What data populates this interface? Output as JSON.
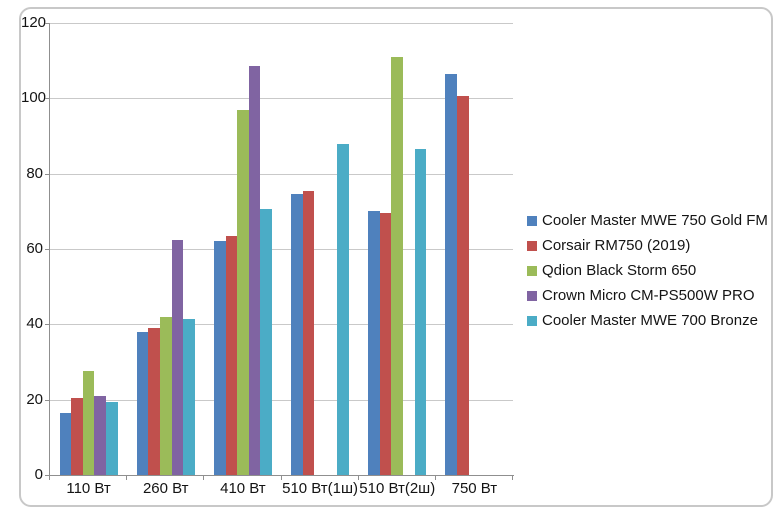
{
  "chart_data": {
    "type": "bar",
    "title": "",
    "xlabel": "",
    "ylabel": "",
    "categories": [
      "110 Вт",
      "260 Вт",
      "410 Вт",
      "510 Вт(1ш)",
      "510 Вт(2ш)",
      "750 Вт"
    ],
    "series": [
      {
        "name": "Cooler Master MWE 750 Gold FM",
        "color": "#4F81BD",
        "values": [
          16.5,
          38,
          62,
          74.5,
          70,
          106.5
        ]
      },
      {
        "name": "Corsair RM750 (2019)",
        "color": "#C0504D",
        "values": [
          20.5,
          39,
          63.5,
          75.5,
          69.5,
          100.5
        ]
      },
      {
        "name": "Qdion Black Storm 650",
        "color": "#9BBB59",
        "values": [
          27.5,
          42,
          97,
          null,
          111,
          null
        ]
      },
      {
        "name": "Crown Micro CM-PS500W PRO",
        "color": "#8064A2",
        "values": [
          21,
          62.5,
          108.5,
          null,
          null,
          null
        ]
      },
      {
        "name": "Cooler Master MWE 700 Bronze",
        "color": "#4BACC6",
        "values": [
          19.5,
          41.5,
          70.5,
          88,
          86.5,
          null
        ]
      }
    ],
    "ylim": [
      0,
      120
    ],
    "ytick_step": 20,
    "yticks": [
      "0",
      "20",
      "40",
      "60",
      "80",
      "100",
      "120"
    ],
    "grid": true,
    "legend_position": "right"
  },
  "colors": {
    "grid": "#C9C9C9",
    "axis": "#8F8F8F",
    "text": "#141414",
    "frame_border": "#C8C8C8",
    "background": "#FFFFFF"
  }
}
